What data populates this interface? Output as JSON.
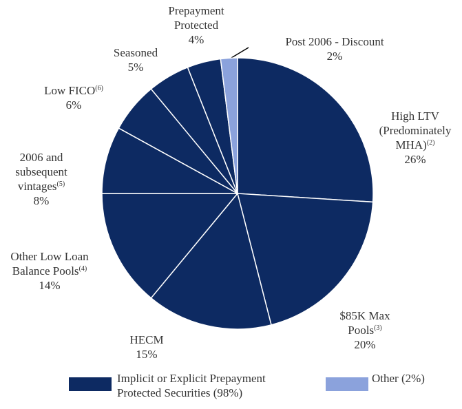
{
  "chart_data": {
    "type": "pie",
    "categories": [
      "High LTV (Predominately MHA)",
      "$85K Max Pools",
      "HECM",
      "Other Low Loan Balance Pools",
      "2006 and subsequent vintages",
      "Low FICO",
      "Seasoned",
      "Prepayment Protected",
      "Post 2006 - Discount"
    ],
    "footnotes": [
      "(2)",
      "(3)",
      null,
      "(4)",
      "(5)",
      "(6)",
      null,
      null,
      null
    ],
    "values": [
      26,
      20,
      15,
      14,
      8,
      6,
      5,
      4,
      2
    ],
    "value_labels": [
      "26%",
      "20%",
      "15%",
      "14%",
      "8%",
      "6%",
      "5%",
      "4%",
      "2%"
    ],
    "colors": [
      "#0d2a62",
      "#0d2a62",
      "#0d2a62",
      "#0d2a62",
      "#0d2a62",
      "#0d2a62",
      "#0d2a62",
      "#0d2a62",
      "#8ba2dc"
    ],
    "legend": [
      {
        "name": "Implicit or Explicit Prepayment Protected Securities (98%)",
        "color": "#0d2a62"
      },
      {
        "name": "Other (2%)",
        "color": "#8ba2dc"
      }
    ]
  }
}
